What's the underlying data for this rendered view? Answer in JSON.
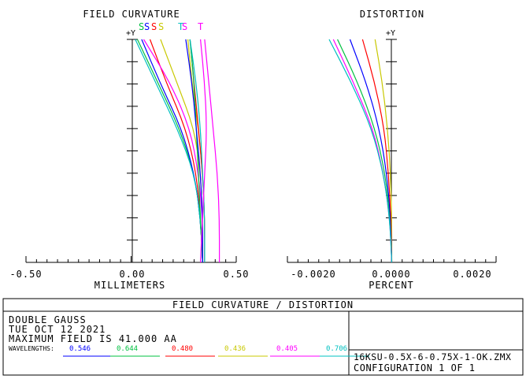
{
  "chart_data": [
    {
      "type": "line",
      "title": "FIELD CURVATURE",
      "axis_label_y": "+Y",
      "xlabel": "MILLIMETERS",
      "xlim": [
        -0.5,
        0.5
      ],
      "ylim": [
        0,
        1
      ],
      "x_ticks": [
        "-0.50",
        "0.00",
        "0.50"
      ],
      "curve_markers": [
        {
          "label": "S",
          "color": "#00c040"
        },
        {
          "label": "S",
          "color": "#0000ff"
        },
        {
          "label": "S",
          "color": "#ff0000"
        },
        {
          "label": "S",
          "color": "#c8c800"
        },
        {
          "label": "T",
          "color": "#00c0c0"
        },
        {
          "label": "S",
          "color": "#ff00ff"
        },
        {
          "label": "T",
          "color": "#ff00ff"
        }
      ],
      "series": [
        {
          "color": "#c8c800",
          "kind": "S",
          "points": [
            [
              0.34,
              0
            ],
            [
              0.34,
              0.2
            ],
            [
              0.33,
              0.4
            ],
            [
              0.3,
              0.6
            ],
            [
              0.22,
              0.8
            ],
            [
              0.14,
              1
            ]
          ]
        },
        {
          "color": "#ff0000",
          "kind": "S",
          "points": [
            [
              0.34,
              0
            ],
            [
              0.33,
              0.2
            ],
            [
              0.31,
              0.4
            ],
            [
              0.26,
              0.6
            ],
            [
              0.17,
              0.8
            ],
            [
              0.09,
              1
            ]
          ]
        },
        {
          "color": "#00c040",
          "kind": "S",
          "points": [
            [
              0.34,
              0
            ],
            [
              0.33,
              0.2
            ],
            [
              0.3,
              0.4
            ],
            [
              0.23,
              0.6
            ],
            [
              0.13,
              0.8
            ],
            [
              0.03,
              1
            ]
          ]
        },
        {
          "color": "#0000ff",
          "kind": "S",
          "points": [
            [
              0.34,
              0
            ],
            [
              0.33,
              0.2
            ],
            [
              0.3,
              0.4
            ],
            [
              0.24,
              0.6
            ],
            [
              0.14,
              0.8
            ],
            [
              0.05,
              1
            ]
          ]
        },
        {
          "color": "#ff00ff",
          "kind": "S",
          "points": [
            [
              0.34,
              0
            ],
            [
              0.34,
              0.2
            ],
            [
              0.32,
              0.4
            ],
            [
              0.28,
              0.6
            ],
            [
              0.19,
              0.8
            ],
            [
              0.06,
              1
            ]
          ]
        },
        {
          "color": "#00c0c0",
          "kind": "S",
          "points": [
            [
              0.34,
              0
            ],
            [
              0.33,
              0.2
            ],
            [
              0.3,
              0.4
            ],
            [
              0.22,
              0.6
            ],
            [
              0.12,
              0.8
            ],
            [
              0.02,
              1
            ]
          ]
        },
        {
          "color": "#c8c800",
          "kind": "T",
          "points": [
            [
              0.35,
              0
            ],
            [
              0.35,
              0.2
            ],
            [
              0.34,
              0.4
            ],
            [
              0.32,
              0.6
            ],
            [
              0.29,
              0.8
            ],
            [
              0.27,
              1
            ]
          ]
        },
        {
          "color": "#ff0000",
          "kind": "T",
          "points": [
            [
              0.35,
              0
            ],
            [
              0.35,
              0.2
            ],
            [
              0.34,
              0.4
            ],
            [
              0.32,
              0.6
            ],
            [
              0.3,
              0.8
            ],
            [
              0.28,
              1
            ]
          ]
        },
        {
          "color": "#00c040",
          "kind": "T",
          "points": [
            [
              0.34,
              0
            ],
            [
              0.33,
              0.2
            ],
            [
              0.32,
              0.4
            ],
            [
              0.31,
              0.6
            ],
            [
              0.3,
              0.8
            ],
            [
              0.28,
              1
            ]
          ]
        },
        {
          "color": "#0000ff",
          "kind": "T",
          "points": [
            [
              0.34,
              0
            ],
            [
              0.34,
              0.2
            ],
            [
              0.33,
              0.4
            ],
            [
              0.31,
              0.6
            ],
            [
              0.29,
              0.8
            ],
            [
              0.26,
              1
            ]
          ]
        },
        {
          "color": "#00c0c0",
          "kind": "T",
          "points": [
            [
              0.35,
              0
            ],
            [
              0.35,
              0.2
            ],
            [
              0.34,
              0.4
            ],
            [
              0.33,
              0.6
            ],
            [
              0.31,
              0.8
            ],
            [
              0.28,
              1
            ]
          ]
        },
        {
          "color": "#ff00ff",
          "kind": "T",
          "points": [
            [
              0.33,
              0
            ],
            [
              0.34,
              0.2
            ],
            [
              0.35,
              0.4
            ],
            [
              0.36,
              0.6
            ],
            [
              0.35,
              0.8
            ],
            [
              0.33,
              1
            ]
          ]
        },
        {
          "color": "#ff00ff",
          "kind": "T",
          "points": [
            [
              0.42,
              0
            ],
            [
              0.42,
              0.2
            ],
            [
              0.41,
              0.4
            ],
            [
              0.39,
              0.6
            ],
            [
              0.37,
              0.8
            ],
            [
              0.35,
              1
            ]
          ]
        }
      ]
    },
    {
      "type": "line",
      "title": "DISTORTION",
      "axis_label_y": "+Y",
      "xlabel": "PERCENT",
      "xlim": [
        -0.0025,
        0.0025
      ],
      "ylim": [
        0,
        1
      ],
      "x_ticks": [
        "-0.0020",
        "0.0000",
        "0.0020"
      ],
      "series": [
        {
          "color": "#c8c800",
          "points": [
            [
              0,
              0
            ],
            [
              0,
              0.2
            ],
            [
              -3e-05,
              0.4
            ],
            [
              -0.0001,
              0.6
            ],
            [
              -0.00022,
              0.8
            ],
            [
              -0.0004,
              1
            ]
          ]
        },
        {
          "color": "#ff0000",
          "points": [
            [
              0,
              0
            ],
            [
              -2e-05,
              0.2
            ],
            [
              -8e-05,
              0.4
            ],
            [
              -0.00018,
              0.6
            ],
            [
              -0.0004,
              0.8
            ],
            [
              -0.0007,
              1
            ]
          ]
        },
        {
          "color": "#0000ff",
          "points": [
            [
              0,
              0
            ],
            [
              -3e-05,
              0.2
            ],
            [
              -0.00012,
              0.4
            ],
            [
              -0.0003,
              0.6
            ],
            [
              -0.0006,
              0.8
            ],
            [
              -0.001,
              1
            ]
          ]
        },
        {
          "color": "#00c040",
          "points": [
            [
              0,
              0
            ],
            [
              -4e-05,
              0.2
            ],
            [
              -0.00016,
              0.4
            ],
            [
              -0.0004,
              0.6
            ],
            [
              -0.0008,
              0.8
            ],
            [
              -0.0013,
              1
            ]
          ]
        },
        {
          "color": "#ff00ff",
          "points": [
            [
              0,
              0
            ],
            [
              -5e-05,
              0.2
            ],
            [
              -0.0002,
              0.4
            ],
            [
              -0.00045,
              0.6
            ],
            [
              -0.0009,
              0.8
            ],
            [
              -0.0014,
              1
            ]
          ]
        },
        {
          "color": "#00c0c0",
          "points": [
            [
              0,
              0
            ],
            [
              -5e-05,
              0.2
            ],
            [
              -0.0002,
              0.4
            ],
            [
              -0.00048,
              0.6
            ],
            [
              -0.00095,
              0.8
            ],
            [
              -0.0015,
              1
            ]
          ]
        }
      ]
    }
  ],
  "footer": {
    "title": "FIELD CURVATURE / DISTORTION",
    "lens_name": "DOUBLE GAUSS",
    "date": "TUE OCT 12 2021",
    "max_field": "MAXIMUM FIELD IS 41.000  AA",
    "wavelengths_label": "WAVELENGTHS:",
    "wavelengths": [
      {
        "value": "0.546",
        "color": "#0000ff"
      },
      {
        "value": "0.644",
        "color": "#00c040"
      },
      {
        "value": "0.480",
        "color": "#ff0000"
      },
      {
        "value": "0.436",
        "color": "#c8c800"
      },
      {
        "value": "0.405",
        "color": "#ff00ff"
      },
      {
        "value": "0.706",
        "color": "#00c0c0"
      }
    ],
    "file_name": "16KSU-0.5X-6-0.75X-1-OK.ZMX",
    "configuration": "CONFIGURATION  1  OF  1"
  }
}
